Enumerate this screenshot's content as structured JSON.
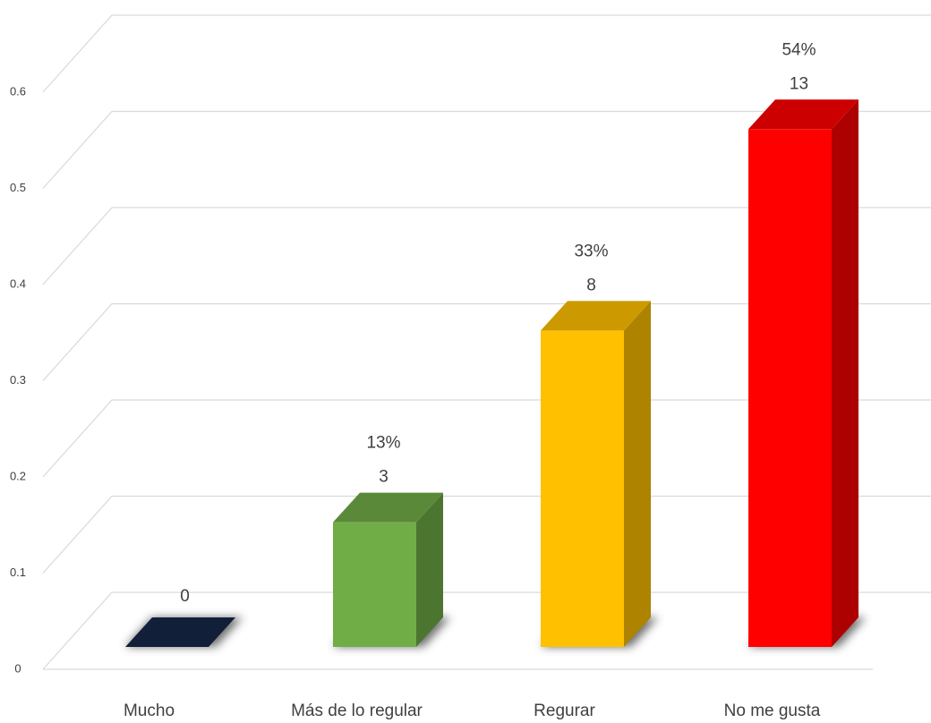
{
  "chart_data": {
    "type": "bar3d",
    "categories": [
      "Mucho",
      "Más de lo regular",
      "Regurar",
      "No me gusta"
    ],
    "values": [
      0,
      0.13,
      0.33,
      0.54
    ],
    "value_labels": [
      "0",
      "13%",
      "33%",
      "54%"
    ],
    "counts": [
      null,
      3,
      8,
      13
    ],
    "colors": [
      "#172747",
      "#70ad47",
      "#ffc000",
      "#ff0000"
    ],
    "ylim": [
      0,
      0.6
    ],
    "yticks": [
      0,
      0.1,
      0.2,
      0.3,
      0.4,
      0.5,
      0.6
    ],
    "grid": true
  }
}
